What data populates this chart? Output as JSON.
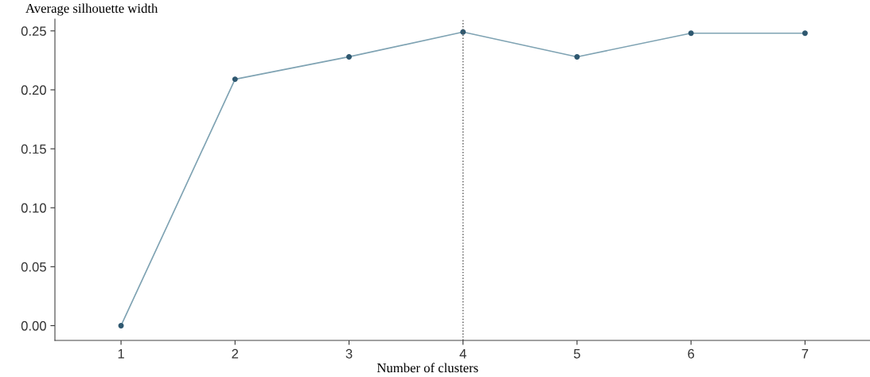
{
  "chart_data": {
    "type": "line",
    "xlabel": "Number of clusters",
    "ylabel": "Average silhouette width",
    "categories": [
      "1",
      "2",
      "3",
      "4",
      "5",
      "6",
      "7"
    ],
    "series": [
      {
        "color": "#7fa3b3",
        "values": [
          0.0,
          0.209,
          0.228,
          0.249,
          0.228,
          0.248,
          0.248
        ]
      }
    ],
    "marker": "circle",
    "line_style": "solid",
    "grid": false,
    "ylim": [
      -0.0125,
      0.26
    ],
    "yticks": [
      {
        "value": 0,
        "label": "0.00"
      },
      {
        "value": 0.05,
        "label": "0.05"
      },
      {
        "value": 0.1,
        "label": "0.10"
      },
      {
        "value": 0.15,
        "label": "0.15"
      },
      {
        "value": 0.2,
        "label": "0.20"
      },
      {
        "value": 0.25,
        "label": "0.25"
      }
    ],
    "ref_lines": [
      {
        "axis": "x",
        "value": "4",
        "color": "#555555",
        "line_style": "dotted"
      }
    ]
  }
}
